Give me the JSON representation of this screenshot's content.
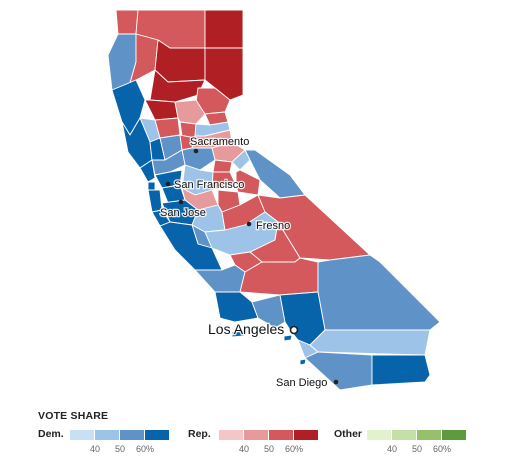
{
  "cities": [
    {
      "name": "Sacramento",
      "marker": "dot"
    },
    {
      "name": "San Francisco",
      "marker": "dot"
    },
    {
      "name": "San Jose",
      "marker": "dot"
    },
    {
      "name": "Fresno",
      "marker": "dot"
    },
    {
      "name": "Los Angeles",
      "marker": "ring"
    },
    {
      "name": "San Diego",
      "marker": "dot"
    }
  ],
  "legend": {
    "title": "VOTE SHARE",
    "groups": [
      {
        "key": "dem",
        "label": "Dem.",
        "colors": [
          "#c8dff4",
          "#9ec3e8",
          "#5f93c8",
          "#0764aa"
        ],
        "ticks": [
          "40",
          "50",
          "60%"
        ]
      },
      {
        "key": "rep",
        "label": "Rep.",
        "colors": [
          "#f4c6c8",
          "#e79a9b",
          "#d4595c",
          "#b01f24"
        ],
        "ticks": [
          "40",
          "50",
          "60%"
        ]
      },
      {
        "key": "other",
        "label": "Other",
        "colors": [
          "#e2f2cf",
          "#c4e0a4",
          "#96c06c",
          "#5f9a3c"
        ],
        "ticks": [
          "40",
          "50",
          "60%"
        ]
      }
    ]
  },
  "colors": {
    "dem_light": "#c8dff4",
    "dem_mid_light": "#9ec3e8",
    "dem_mid": "#5f93c8",
    "dem_dark": "#0764aa",
    "rep_light": "#f4c6c8",
    "rep_mid_light": "#e79a9b",
    "rep_mid": "#d4595c",
    "rep_dark": "#b01f24"
  }
}
